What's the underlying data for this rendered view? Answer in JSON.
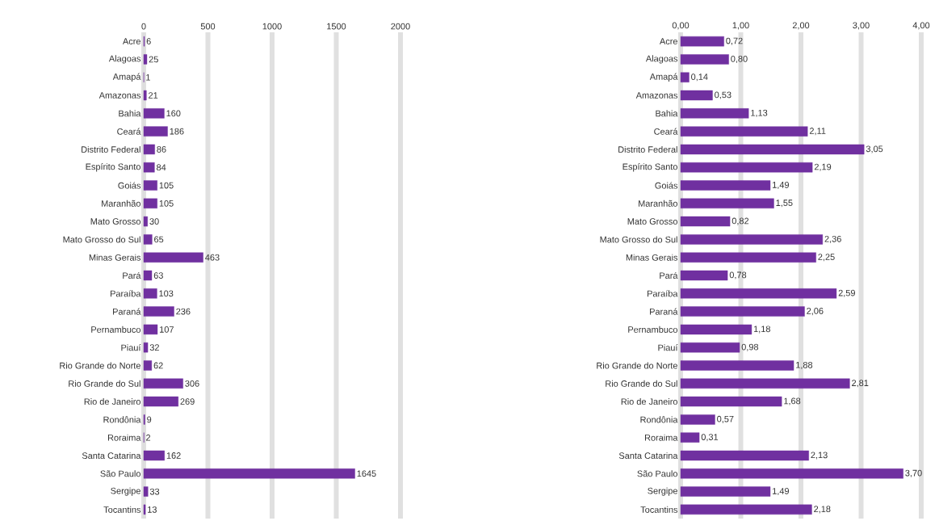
{
  "chart_data": [
    {
      "type": "bar",
      "orientation": "horizontal",
      "categories": [
        "Acre",
        "Alagoas",
        "Amapá",
        "Amazonas",
        "Bahia",
        "Ceará",
        "Distrito Federal",
        "Espírito Santo",
        "Goiás",
        "Maranhão",
        "Mato Grosso",
        "Mato Grosso do Sul",
        "Minas Gerais",
        "Pará",
        "Paraíba",
        "Paraná",
        "Pernambuco",
        "Piauí",
        "Rio Grande do Norte",
        "Rio Grande do Sul",
        "Rio de Janeiro",
        "Rondônia",
        "Roraima",
        "Santa Catarina",
        "São Paulo",
        "Sergipe",
        "Tocantins"
      ],
      "values": [
        6,
        25,
        1,
        21,
        160,
        186,
        86,
        84,
        105,
        105,
        30,
        65,
        463,
        63,
        103,
        236,
        107,
        32,
        62,
        306,
        269,
        9,
        2,
        162,
        1645,
        33,
        13
      ],
      "color": "#7030a0",
      "xlim": [
        0,
        2000
      ],
      "xticks": [
        0,
        500,
        1000,
        1500,
        2000
      ],
      "grid": "x",
      "data_labels": true
    },
    {
      "type": "bar",
      "orientation": "horizontal",
      "categories": [
        "Acre",
        "Alagoas",
        "Amapá",
        "Amazonas",
        "Bahia",
        "Ceará",
        "Distrito Federal",
        "Espírito Santo",
        "Goiás",
        "Maranhão",
        "Mato Grosso",
        "Mato Grosso do Sul",
        "Minas Gerais",
        "Pará",
        "Paraíba",
        "Paraná",
        "Pernambuco",
        "Piauí",
        "Rio Grande do Norte",
        "Rio Grande do Sul",
        "Rio de Janeiro",
        "Rondônia",
        "Roraima",
        "Santa Catarina",
        "São Paulo",
        "Sergipe",
        "Tocantins"
      ],
      "values": [
        0.72,
        0.8,
        0.14,
        0.53,
        1.13,
        2.11,
        3.05,
        2.19,
        1.49,
        1.55,
        0.82,
        2.36,
        2.25,
        0.78,
        2.59,
        2.06,
        1.18,
        0.98,
        1.88,
        2.81,
        1.68,
        0.57,
        0.31,
        2.13,
        3.7,
        1.49,
        2.18
      ],
      "value_labels": [
        "0,72",
        "0,80",
        "0,14",
        "0,53",
        "1,13",
        "2,11",
        "3,05",
        "2,19",
        "1,49",
        "1,55",
        "0,82",
        "2,36",
        "2,25",
        "0,78",
        "2,59",
        "2,06",
        "1,18",
        "0,98",
        "1,88",
        "2,81",
        "1,68",
        "0,57",
        "0,31",
        "2,13",
        "3,70",
        "1,49",
        "2,18"
      ],
      "color": "#7030a0",
      "xlim": [
        0,
        4
      ],
      "xticks": [
        {
          "value": 0,
          "label": "0,00"
        },
        {
          "value": 1,
          "label": "1,00"
        },
        {
          "value": 2,
          "label": "2,00"
        },
        {
          "value": 3,
          "label": "3,00"
        },
        {
          "value": 4,
          "label": "4,00"
        }
      ],
      "grid": "x"
    }
  ]
}
